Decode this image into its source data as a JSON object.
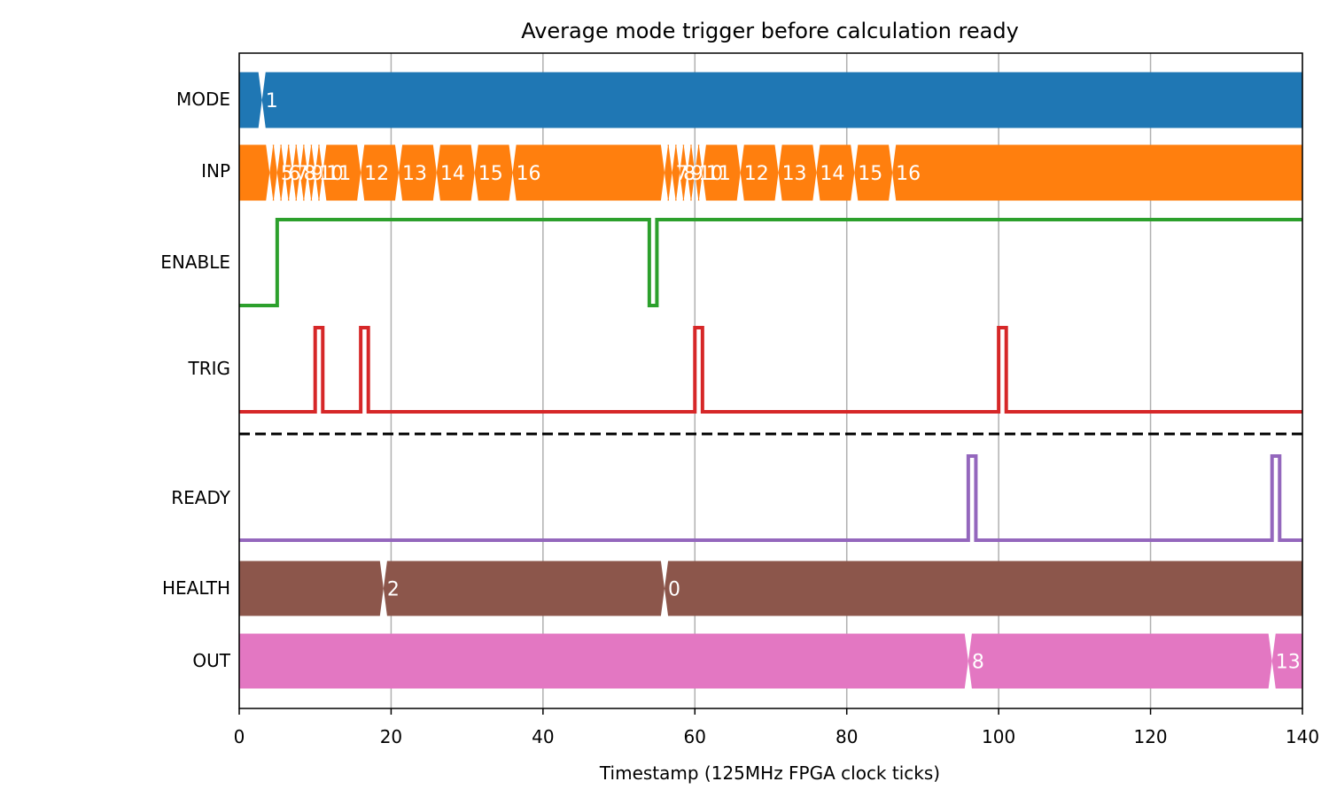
{
  "chart_data": {
    "type": "timing",
    "title": "Average mode trigger before calculation ready",
    "xlabel": "Timestamp (125MHz FPGA clock ticks)",
    "xlim": [
      0,
      140
    ],
    "xticks": [
      0,
      20,
      40,
      60,
      80,
      100,
      120,
      140
    ],
    "grid": "vertical",
    "signals": [
      {
        "name": "MODE",
        "kind": "bus",
        "color": "#1f77b4",
        "transitions": [
          3
        ],
        "values": [
          {
            "x": 3,
            "label": "1"
          }
        ]
      },
      {
        "name": "INP",
        "kind": "bus",
        "color": "#ff7f0e",
        "transitions": [
          4,
          5,
          6,
          7,
          8,
          9,
          10,
          11,
          16,
          21,
          26,
          31,
          36,
          56,
          57,
          58,
          59,
          60,
          61,
          66,
          71,
          76,
          81,
          86
        ],
        "values": [
          {
            "x": 5,
            "label": "5"
          },
          {
            "x": 6,
            "label": "6"
          },
          {
            "x": 7,
            "label": "7"
          },
          {
            "x": 8,
            "label": "8"
          },
          {
            "x": 9,
            "label": "9"
          },
          {
            "x": 10,
            "label": "10"
          },
          {
            "x": 11,
            "label": "11"
          },
          {
            "x": 16,
            "label": "12"
          },
          {
            "x": 21,
            "label": "13"
          },
          {
            "x": 26,
            "label": "14"
          },
          {
            "x": 31,
            "label": "15"
          },
          {
            "x": 36,
            "label": "16"
          },
          {
            "x": 57,
            "label": "7"
          },
          {
            "x": 58,
            "label": "8"
          },
          {
            "x": 59,
            "label": "9"
          },
          {
            "x": 60,
            "label": "10"
          },
          {
            "x": 61,
            "label": "11"
          },
          {
            "x": 66,
            "label": "12"
          },
          {
            "x": 71,
            "label": "13"
          },
          {
            "x": 76,
            "label": "14"
          },
          {
            "x": 81,
            "label": "15"
          },
          {
            "x": 86,
            "label": "16"
          }
        ]
      },
      {
        "name": "ENABLE",
        "kind": "bit",
        "color": "#2ca02c",
        "steps": [
          [
            0,
            0
          ],
          [
            5,
            1
          ],
          [
            54,
            0
          ],
          [
            55,
            1
          ]
        ]
      },
      {
        "name": "TRIG",
        "kind": "bit",
        "color": "#d62728",
        "steps": [
          [
            0,
            0
          ],
          [
            10,
            1
          ],
          [
            11,
            0
          ],
          [
            16,
            1
          ],
          [
            17,
            0
          ],
          [
            60,
            1
          ],
          [
            61,
            0
          ],
          [
            100,
            1
          ],
          [
            101,
            0
          ]
        ]
      },
      {
        "name": "READY",
        "kind": "bit",
        "color": "#9467bd",
        "steps": [
          [
            0,
            0
          ],
          [
            96,
            1
          ],
          [
            97,
            0
          ],
          [
            136,
            1
          ],
          [
            137,
            0
          ]
        ]
      },
      {
        "name": "HEALTH",
        "kind": "bus",
        "color": "#8c564b",
        "transitions": [
          19,
          56
        ],
        "values": [
          {
            "x": 19,
            "label": "2"
          },
          {
            "x": 56,
            "label": "0"
          }
        ]
      },
      {
        "name": "OUT",
        "kind": "bus",
        "color": "#e377c2",
        "transitions": [
          96,
          136
        ],
        "values": [
          {
            "x": 96,
            "label": "8"
          },
          {
            "x": 136,
            "label": "13"
          }
        ]
      }
    ]
  }
}
